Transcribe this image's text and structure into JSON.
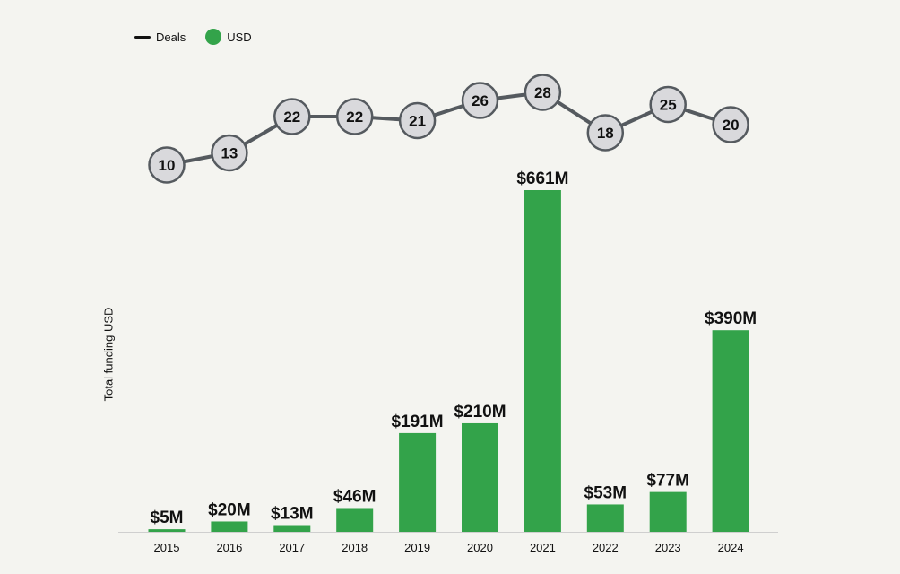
{
  "chart_data": {
    "type": "bar",
    "categories": [
      "2015",
      "2016",
      "2017",
      "2018",
      "2019",
      "2020",
      "2021",
      "2022",
      "2023",
      "2024"
    ],
    "series": [
      {
        "name": "USD",
        "values": [
          5,
          20,
          13,
          46,
          191,
          210,
          661,
          53,
          77,
          390
        ],
        "labels": [
          "$5M",
          "$20M",
          "$13M",
          "$46M",
          "$191M",
          "$210M",
          "$661M",
          "$53M",
          "$77M",
          "$390M"
        ],
        "color": "#33a34a"
      },
      {
        "name": "Deals",
        "type": "line",
        "values": [
          10,
          13,
          22,
          22,
          21,
          26,
          28,
          18,
          25,
          20
        ],
        "color": "#555a5f",
        "marker_fill": "#d9d9dc"
      }
    ],
    "ylabel": "Total funding USD",
    "ylim": [
      0,
      661
    ],
    "deals_range": [
      10,
      28
    ],
    "grid": false,
    "legend": "top-left"
  },
  "legend": {
    "deals_label": "Deals",
    "usd_label": "USD"
  }
}
